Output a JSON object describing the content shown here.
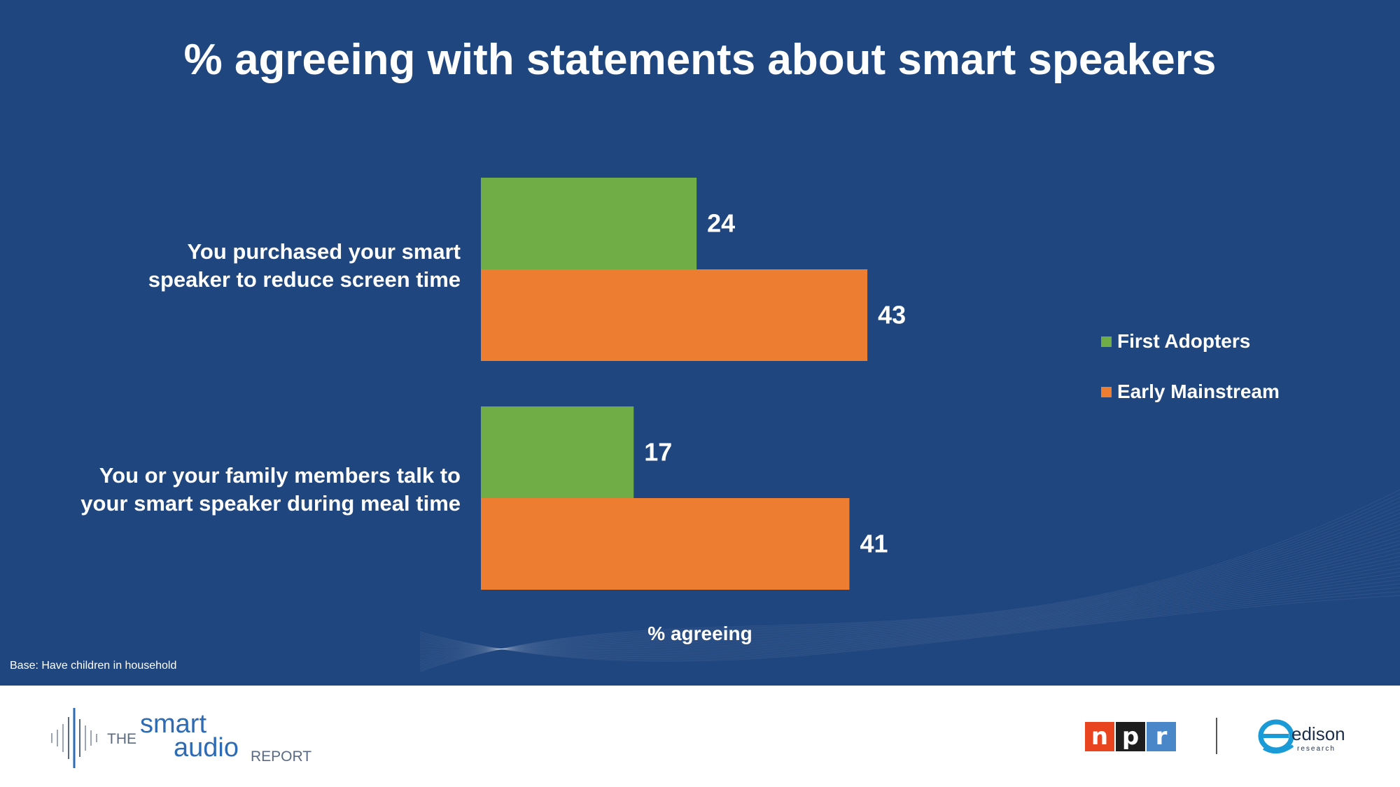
{
  "title": "% agreeing with statements about smart speakers",
  "chart_data": {
    "type": "bar",
    "orientation": "horizontal",
    "categories": [
      "You purchased your smart speaker to reduce screen time",
      "You or your family members talk to your smart speaker during meal time"
    ],
    "category_lines": [
      [
        "You purchased your smart",
        "speaker to reduce screen time"
      ],
      [
        "You or your family members talk to",
        "your smart speaker during meal time"
      ]
    ],
    "series": [
      {
        "name": "First Adopters",
        "values": [
          24,
          17
        ],
        "color": "#70ad47"
      },
      {
        "name": "Early Mainstream",
        "values": [
          43,
          41
        ],
        "color": "#ed7d31"
      }
    ],
    "xlabel": "% agreeing",
    "legend_position": "right",
    "grid": false,
    "xlim": [
      0,
      60
    ]
  },
  "footnote": "Base: Have children in household",
  "logos": {
    "sar": {
      "the": "THE",
      "smart": "smart",
      "audio": "audio",
      "report": "REPORT"
    },
    "npr": {
      "letters": [
        "n",
        "p",
        "r"
      ],
      "colors": [
        "#e8441f",
        "#1e1e1e",
        "#4a87c9"
      ]
    },
    "edison": {
      "name": "edison",
      "sub": "research"
    }
  },
  "colors": {
    "background": "#20467f",
    "footer": "#ffffff"
  }
}
